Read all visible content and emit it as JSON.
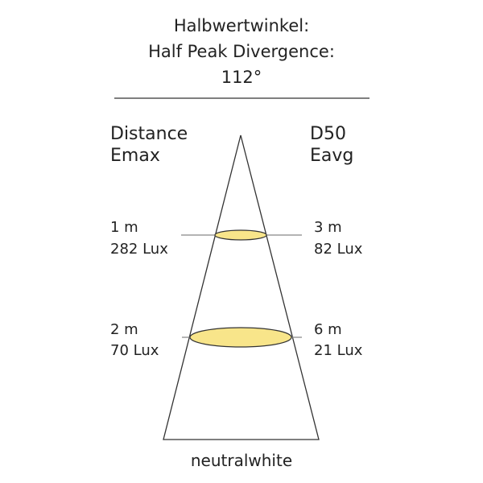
{
  "title": {
    "line1": "Halbwertwinkel:",
    "line2": "Half Peak Divergence:",
    "angle": "112°"
  },
  "left_header": {
    "line1": "Distance",
    "line2": "Emax"
  },
  "right_header": {
    "line1": "D50",
    "line2": "Eavg"
  },
  "levels": [
    {
      "distance": "1 m",
      "emax": "282 Lux",
      "diameter": "3 m",
      "eavg": "82 Lux"
    },
    {
      "distance": "2 m",
      "emax": "70 Lux",
      "diameter": "6 m",
      "eavg": "21 Lux"
    }
  ],
  "color_temperature": "neutralwhite",
  "colors": {
    "light_spot": "#f8e58a",
    "lines": "#333333"
  }
}
